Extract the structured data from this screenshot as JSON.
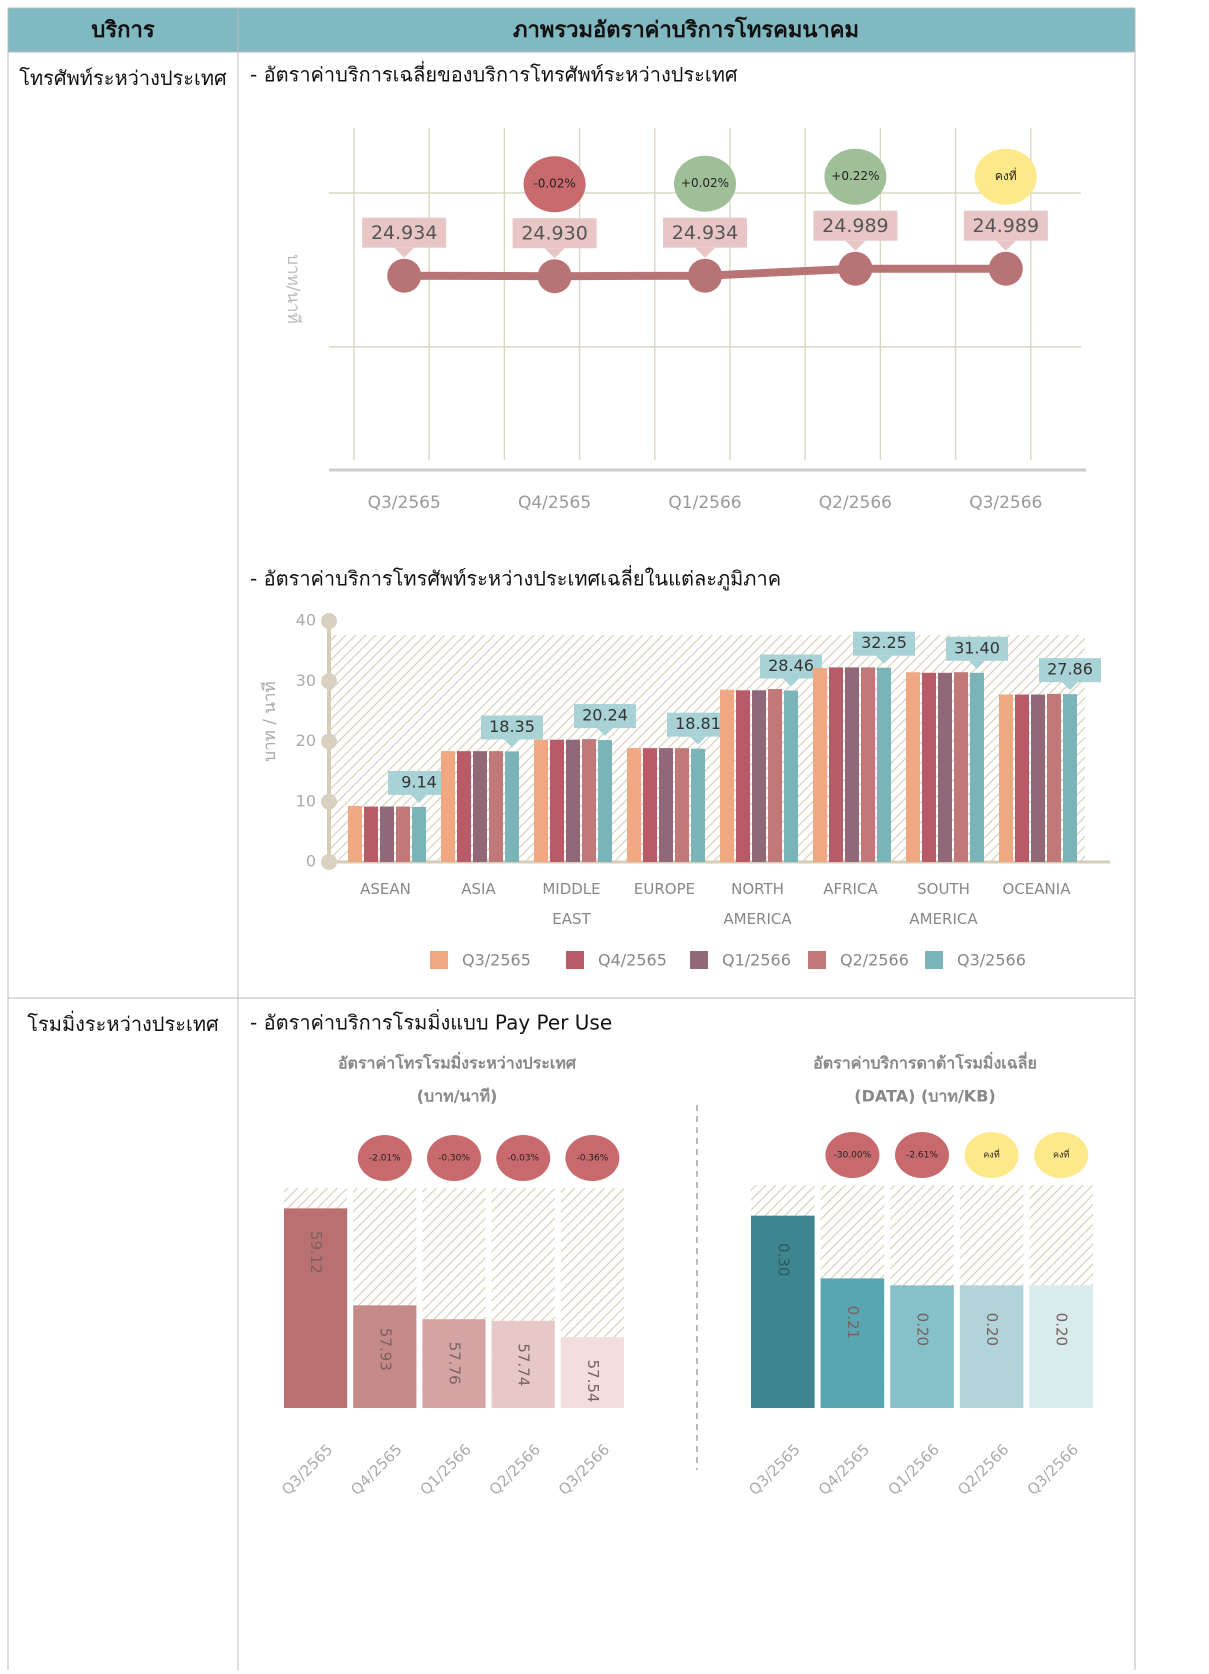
{
  "table": {
    "header": [
      "บริการ",
      "ภาพรวมอัตราค่าบริการโทรคมนาคม"
    ],
    "rows": [
      {
        "service": "โทรศัพท์ระหว่างประเทศ",
        "headings": [
          "- อัตราค่าบริการเฉลี่ยของบริการโทรศัพท์ระหว่างประเทศ",
          "- อัตราค่าบริการโทรศัพท์ระหว่างประเทศเฉลี่ยในแต่ละภูมิภาค"
        ]
      },
      {
        "service": "โรมมิ่งระหว่างประเทศ",
        "headings": [
          "- อัตราค่าบริการโรมมิ่งแบบ Pay Per Use"
        ]
      }
    ]
  },
  "chart_data": [
    {
      "type": "line",
      "ylabel": "บาท/นาที",
      "categories": [
        "Q3/2565",
        "Q4/2565",
        "Q1/2566",
        "Q2/2566",
        "Q3/2566"
      ],
      "values": [
        24.934,
        24.93,
        24.934,
        24.989,
        24.989
      ],
      "value_labels": [
        "24.934",
        "24.930",
        "24.934",
        "24.989",
        "24.989"
      ],
      "changes": [
        null,
        "-0.02%",
        "+0.02%",
        "+0.22%",
        "คงที่"
      ],
      "change_colors": [
        null,
        "#c8696d",
        "#9fbf98",
        "#9fbf98",
        "#fde98a"
      ],
      "color": "#b87474",
      "ylim": [
        23.4,
        26.1
      ]
    },
    {
      "type": "grouped_bar",
      "ylabel": "บาท / นาที",
      "categories": [
        "ASEAN",
        "ASIA",
        "MIDDLE EAST",
        "EUROPE",
        "NORTH AMERICA",
        "AFRICA",
        "SOUTH AMERICA",
        "OCEANIA"
      ],
      "series": [
        {
          "name": "Q3/2565",
          "color": "#f0a882",
          "values": [
            9.3,
            18.4,
            20.3,
            18.9,
            28.6,
            32.2,
            31.5,
            27.8
          ]
        },
        {
          "name": "Q4/2565",
          "color": "#b85a68",
          "values": [
            9.2,
            18.4,
            20.3,
            18.9,
            28.5,
            32.3,
            31.4,
            27.8
          ]
        },
        {
          "name": "Q1/2566",
          "color": "#906878",
          "values": [
            9.2,
            18.4,
            20.3,
            18.9,
            28.5,
            32.3,
            31.4,
            27.8
          ]
        },
        {
          "name": "Q2/2566",
          "color": "#c07878",
          "values": [
            9.2,
            18.4,
            20.4,
            18.9,
            28.7,
            32.3,
            31.5,
            27.9
          ]
        },
        {
          "name": "Q3/2566",
          "color": "#7ab4b8",
          "values": [
            9.14,
            18.35,
            20.24,
            18.81,
            28.46,
            32.25,
            31.4,
            27.86
          ],
          "value_labels": [
            "9.14",
            "18.35",
            "20.24",
            "18.81",
            "28.46",
            "32.25",
            "31.40",
            "27.86"
          ]
        }
      ],
      "ylim": [
        0,
        40
      ],
      "yticks": [
        0,
        10,
        20,
        30,
        40
      ],
      "legend": "bottom"
    },
    {
      "type": "bar",
      "title": "อัตราค่าโทรโรมมิ่งระหว่างประเทศ",
      "subtitle": "(บาท/นาที)",
      "categories": [
        "Q3/2565",
        "Q4/2565",
        "Q1/2566",
        "Q2/2566",
        "Q3/2566"
      ],
      "values": [
        59.12,
        57.93,
        57.76,
        57.74,
        57.54
      ],
      "colors": [
        "#b87070",
        "#c48a88",
        "#d4a4a4",
        "#e6c8c8",
        "#f2dede"
      ],
      "changes": [
        null,
        "-2.01%",
        "-0.30%",
        "-0.03%",
        "-0.36%"
      ],
      "change_colors": [
        null,
        "#c8696d",
        "#c8696d",
        "#c8696d",
        "#c8696d"
      ],
      "ylim": [
        56.67,
        59.37
      ]
    },
    {
      "type": "bar",
      "title": "อัตราค่าบริการดาต้าโรมมิ่งเฉลี่ย",
      "subtitle": "(DATA) (บาท/KB)",
      "categories": [
        "Q3/2565",
        "Q4/2565",
        "Q1/2566",
        "Q2/2566",
        "Q3/2566"
      ],
      "values": [
        0.3,
        0.21,
        0.2,
        0.2,
        0.2
      ],
      "value_labels": [
        "0.30",
        "0.21",
        "0.20",
        "0.20",
        "0.20"
      ],
      "colors": [
        "#3e8590",
        "#58a6b2",
        "#86c0c8",
        "#b0d4da",
        "#d8ecee"
      ],
      "changes": [
        null,
        "-30.00%",
        "-2.61%",
        "คงที่",
        "คงที่"
      ],
      "change_colors": [
        null,
        "#c8696d",
        "#c8696d",
        "#fde98a",
        "#fde98a"
      ],
      "ylim": [
        0.024,
        0.344
      ]
    }
  ]
}
